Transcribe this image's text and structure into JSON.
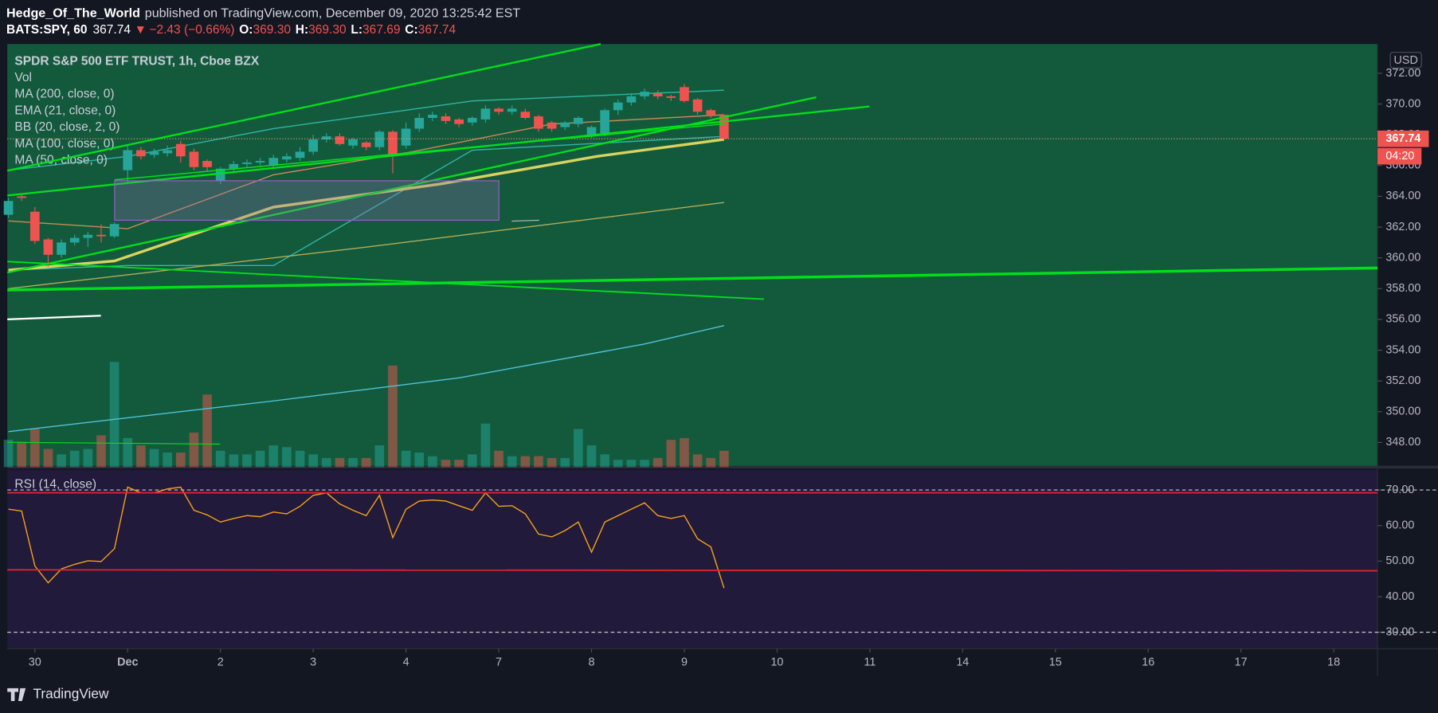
{
  "header": {
    "author": "Hedge_Of_The_World",
    "published": "published on TradingView.com, December 09, 2020 13:25:42 EST",
    "symbol": "BATS:SPY, 60",
    "last": "367.74",
    "arrow": "▼",
    "change": "−2.43 (−0.66%)",
    "o_label": "O:",
    "o": "369.30",
    "h_label": "H:",
    "h": "369.30",
    "l_label": "L:",
    "l": "367.69",
    "c_label": "C:",
    "c": "367.74"
  },
  "chart_data": [
    {
      "type": "candlestick",
      "title": "SPDR S&P 500 ETF TRUST, 1h, Cboe BZX",
      "currency": "USD",
      "volume_name": "Vol",
      "last_price": 367.74,
      "countdown": "04:20",
      "up_color": "#26a69a",
      "down_color": "#ef5350",
      "xlim": [
        -0.08,
        103.3
      ],
      "ylim": [
        346.4,
        373.9
      ],
      "volume_lim": [
        0,
        140
      ],
      "xticks": [
        {
          "value": 2,
          "label": "30"
        },
        {
          "value": 9,
          "label": "Dec"
        },
        {
          "value": 16,
          "label": "2"
        },
        {
          "value": 23,
          "label": "3"
        },
        {
          "value": 30,
          "label": "4"
        },
        {
          "value": 37,
          "label": "7"
        },
        {
          "value": 44,
          "label": "8"
        },
        {
          "value": 51,
          "label": "9"
        },
        {
          "value": 58,
          "label": "10"
        },
        {
          "value": 65,
          "label": "11"
        },
        {
          "value": 72,
          "label": "14"
        },
        {
          "value": 79,
          "label": "15"
        },
        {
          "value": 86,
          "label": "16"
        },
        {
          "value": 93,
          "label": "17"
        },
        {
          "value": 100,
          "label": "18"
        }
      ],
      "yticks": [
        {
          "value": 348,
          "label": "348.00"
        },
        {
          "value": 350,
          "label": "350.00"
        },
        {
          "value": 352,
          "label": "352.00"
        },
        {
          "value": 354,
          "label": "354.00"
        },
        {
          "value": 356,
          "label": "356.00"
        },
        {
          "value": 358,
          "label": "358.00"
        },
        {
          "value": 360,
          "label": "360.00"
        },
        {
          "value": 362,
          "label": "362.00"
        },
        {
          "value": 364,
          "label": "364.00"
        },
        {
          "value": 366,
          "label": "366.00"
        },
        {
          "value": 368,
          "label": "368.00"
        },
        {
          "value": 370,
          "label": "370.00"
        },
        {
          "value": 372,
          "label": "372.00"
        }
      ],
      "x": [
        0,
        1,
        2,
        3,
        4,
        5,
        6,
        7,
        8,
        9,
        10,
        11,
        12,
        13,
        14,
        15,
        16,
        17,
        18,
        19,
        20,
        21,
        22,
        23,
        24,
        25,
        26,
        27,
        28,
        29,
        30,
        31,
        32,
        33,
        34,
        35,
        36,
        37,
        38,
        39,
        40,
        41,
        42,
        43,
        44,
        45,
        46,
        47,
        48,
        49,
        50,
        51,
        52,
        53,
        54
      ],
      "open": [
        362.8,
        364.0,
        363.0,
        361.2,
        360.2,
        361.0,
        361.3,
        361.5,
        361.4,
        365.7,
        367.0,
        366.7,
        366.8,
        367.4,
        366.9,
        366.3,
        365.0,
        365.8,
        366.1,
        366.2,
        366.0,
        366.4,
        366.5,
        366.9,
        367.7,
        367.9,
        367.3,
        367.5,
        367.2,
        368.2,
        367.3,
        368.4,
        369.1,
        369.2,
        369.0,
        368.8,
        369.0,
        369.7,
        369.5,
        369.5,
        369.2,
        368.8,
        368.5,
        368.7,
        367.9,
        368.1,
        369.6,
        370.1,
        370.5,
        370.7,
        370.5,
        371.1,
        370.3,
        369.6,
        369.3
      ],
      "high": [
        363.9,
        364.1,
        363.3,
        361.3,
        361.2,
        361.5,
        361.7,
        362.2,
        362.3,
        367.3,
        367.2,
        367.1,
        367.3,
        367.6,
        367.1,
        366.4,
        365.9,
        366.3,
        366.4,
        366.5,
        366.7,
        366.8,
        367.2,
        368.0,
        368.1,
        368.1,
        367.8,
        367.6,
        368.3,
        368.3,
        368.8,
        369.4,
        369.5,
        369.4,
        369.1,
        369.2,
        369.9,
        369.8,
        369.9,
        369.7,
        369.3,
        368.9,
        368.9,
        369.2,
        368.6,
        369.7,
        370.3,
        370.7,
        371.0,
        370.9,
        370.6,
        371.3,
        370.4,
        369.7,
        369.3
      ],
      "low": [
        362.6,
        363.7,
        360.9,
        359.4,
        360.0,
        360.8,
        360.7,
        361.0,
        361.3,
        364.8,
        366.4,
        366.5,
        366.6,
        366.2,
        365.7,
        365.6,
        364.8,
        365.6,
        365.9,
        366.0,
        365.8,
        366.2,
        366.3,
        366.7,
        367.5,
        367.3,
        367.1,
        367.0,
        367.0,
        365.5,
        367.1,
        368.2,
        368.9,
        368.7,
        368.5,
        368.6,
        368.8,
        369.3,
        369.3,
        369.0,
        368.2,
        368.2,
        368.3,
        368.5,
        367.8,
        367.9,
        369.3,
        369.9,
        370.3,
        370.3,
        370.2,
        370.1,
        369.3,
        369.1,
        367.69
      ],
      "close": [
        363.7,
        363.9,
        361.1,
        360.2,
        361.0,
        361.3,
        361.5,
        361.4,
        362.2,
        367.0,
        366.6,
        366.9,
        367.0,
        366.6,
        365.9,
        365.9,
        365.8,
        366.1,
        366.2,
        366.3,
        366.5,
        366.6,
        366.9,
        367.7,
        367.9,
        367.4,
        367.7,
        367.2,
        368.2,
        366.6,
        368.4,
        369.1,
        369.3,
        368.9,
        368.7,
        369.1,
        369.7,
        369.5,
        369.7,
        369.1,
        368.4,
        368.4,
        368.8,
        369.1,
        368.5,
        369.6,
        370.1,
        370.5,
        370.8,
        370.5,
        370.4,
        370.2,
        369.5,
        369.3,
        367.74
      ],
      "volume": [
        30,
        28,
        42,
        20,
        14,
        18,
        20,
        35,
        116,
        32,
        24,
        20,
        16,
        16,
        38,
        80,
        18,
        14,
        14,
        18,
        24,
        22,
        18,
        14,
        10,
        10,
        10,
        10,
        24,
        112,
        18,
        16,
        12,
        8,
        8,
        14,
        48,
        18,
        12,
        12,
        12,
        10,
        10,
        42,
        24,
        14,
        8,
        8,
        8,
        10,
        30,
        32,
        14,
        10,
        18
      ],
      "overlays": [
        {
          "name": "MA (200, close, 0)",
          "color": "#4fc3d9",
          "x": [
            0,
            20,
            34,
            48,
            54
          ],
          "values": [
            348.7,
            350.7,
            352.2,
            354.4,
            355.6
          ]
        },
        {
          "name": "EMA (21, close, 0)",
          "color": "#c98a52",
          "x": [
            0,
            9,
            20,
            30.5,
            41,
            54
          ],
          "values": [
            362.4,
            361.9,
            365.4,
            366.9,
            368.7,
            369.3
          ]
        },
        {
          "name": "BB (20, close, 2, 0)",
          "color": "#2fb6a6",
          "x": [
            0,
            9,
            20,
            35,
            54
          ],
          "upper": [
            365.7,
            366.6,
            368.4,
            370.2,
            370.9
          ],
          "lower": [
            359.2,
            359.5,
            359.5,
            367.0,
            367.9
          ]
        },
        {
          "name": "MA (100, close, 0)",
          "color": "#b3ad55",
          "x": [
            0,
            27,
            54
          ],
          "values": [
            358.0,
            360.7,
            363.6
          ]
        },
        {
          "name": "MA (50, close, 0)",
          "color": "#d8d35e",
          "x": [
            0,
            8,
            20,
            32.6,
            44.4,
            54
          ],
          "values": [
            359.2,
            359.8,
            363.3,
            364.8,
            366.6,
            367.7
          ]
        }
      ]
    },
    {
      "type": "line",
      "title": "RSI (14, close)",
      "color": "#f7a21b",
      "ylim": [
        25.35,
        75.68
      ],
      "band": [
        30,
        70
      ],
      "yticks": [
        {
          "value": 30,
          "label": "30.00"
        },
        {
          "value": 40,
          "label": "40.00"
        },
        {
          "value": 50,
          "label": "50.00"
        },
        {
          "value": 60,
          "label": "60.00"
        },
        {
          "value": 70,
          "label": "70.00"
        }
      ],
      "x": [
        0,
        1,
        2,
        3,
        4,
        5,
        6,
        7,
        8,
        9,
        10,
        11,
        12,
        13,
        14,
        15,
        16,
        17,
        18,
        19,
        20,
        21,
        22,
        23,
        24,
        25,
        26,
        27,
        28,
        29,
        30,
        31,
        32,
        33,
        34,
        35,
        36,
        37,
        38,
        39,
        40,
        41,
        42,
        43,
        44,
        45,
        46,
        47,
        48,
        49,
        50,
        51,
        52,
        53,
        54
      ],
      "values": [
        64.6,
        64.1,
        48.6,
        43.9,
        47.8,
        49.1,
        50.1,
        49.9,
        53.5,
        70.8,
        69.2,
        69.2,
        70.3,
        70.8,
        64.3,
        63.0,
        61.0,
        62.0,
        62.8,
        62.5,
        63.8,
        63.3,
        65.4,
        68.5,
        69.2,
        66.1,
        64.3,
        62.8,
        68.5,
        56.6,
        64.6,
        66.9,
        67.2,
        66.9,
        65.6,
        64.3,
        69.2,
        65.4,
        65.6,
        63.3,
        57.6,
        56.8,
        58.6,
        61.0,
        52.5,
        61.0,
        62.8,
        64.6,
        66.4,
        62.8,
        62.0,
        62.8,
        56.3,
        54.0,
        42.4
      ]
    }
  ],
  "footer": {
    "brand": "TradingView"
  }
}
